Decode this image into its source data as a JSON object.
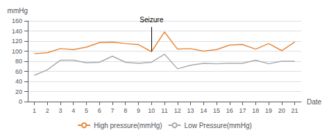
{
  "chart_data": {
    "type": "line",
    "x": [
      1,
      2,
      3,
      4,
      5,
      6,
      7,
      8,
      9,
      10,
      11,
      12,
      13,
      14,
      15,
      16,
      17,
      18,
      19,
      20,
      21
    ],
    "series": [
      {
        "name": "High pressure(mmHg)",
        "color": "#E8873A",
        "values": [
          95,
          97,
          105,
          103,
          108,
          117,
          118,
          115,
          113,
          99,
          138,
          104,
          105,
          100,
          103,
          112,
          113,
          104,
          115,
          101,
          118
        ]
      },
      {
        "name": "Low Pressure(mmHg)",
        "color": "#AAAAAA",
        "values": [
          52,
          63,
          82,
          82,
          77,
          78,
          90,
          78,
          76,
          78,
          94,
          65,
          72,
          76,
          75,
          76,
          76,
          82,
          75,
          80,
          80
        ]
      }
    ],
    "xlabel": "Date",
    "ylabel": "mmHg",
    "xlim": [
      0.5,
      21.5
    ],
    "xticks": [
      1,
      2,
      3,
      4,
      5,
      6,
      7,
      8,
      9,
      10,
      11,
      12,
      13,
      14,
      15,
      16,
      17,
      18,
      19,
      20,
      21
    ],
    "ylim": [
      0,
      160
    ],
    "yticks": [
      0,
      20,
      40,
      60,
      80,
      100,
      120,
      140,
      160
    ],
    "annotations": [
      {
        "text": "Seizure",
        "x": 10,
        "y": 148,
        "tip_y": 100
      }
    ],
    "grid": true,
    "legend": "bottom"
  }
}
